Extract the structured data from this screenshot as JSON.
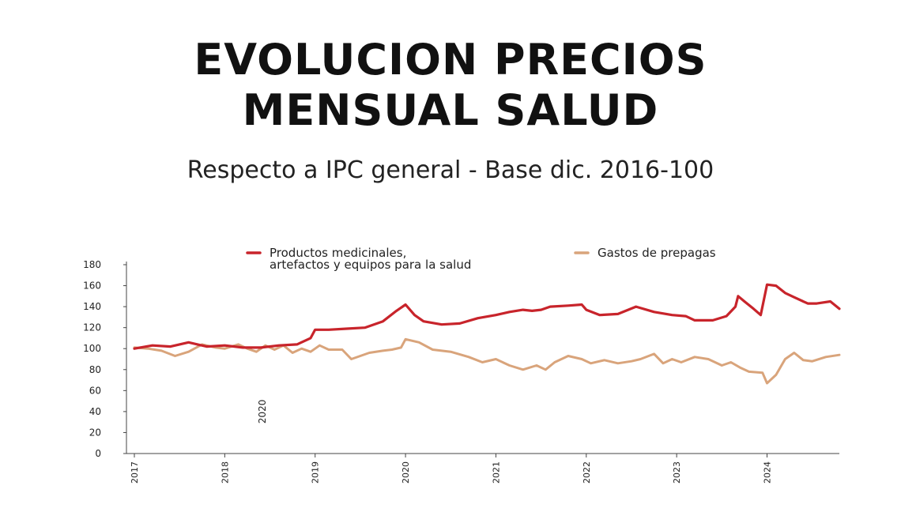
{
  "title_line1": "EVOLUCION PRECIOS",
  "title_line2": "MENSUAL SALUD",
  "subtitle": "Respecto a IPC general - Base dic. 2016-100",
  "chart_data": {
    "type": "line",
    "ylim": [
      0,
      180
    ],
    "yticks": [
      0,
      20,
      40,
      60,
      80,
      100,
      120,
      140,
      160,
      180
    ],
    "xlim": [
      2017,
      2024.8
    ],
    "xticks": [
      2017,
      2018,
      2019,
      2020,
      2021,
      2022,
      2023,
      2024
    ],
    "grid": false,
    "legend_position": "top",
    "annotation": {
      "text": "2020",
      "x": 2018.45,
      "y": 40
    },
    "series": [
      {
        "name": "Productos medicinales, artefactos y equipos para la salud",
        "color": "#c8242b",
        "points": [
          [
            2017.0,
            100
          ],
          [
            2017.2,
            103
          ],
          [
            2017.4,
            102
          ],
          [
            2017.6,
            106
          ],
          [
            2017.8,
            102
          ],
          [
            2018.0,
            103
          ],
          [
            2018.2,
            101
          ],
          [
            2018.4,
            101
          ],
          [
            2018.6,
            103
          ],
          [
            2018.8,
            104
          ],
          [
            2018.95,
            110
          ],
          [
            2019.0,
            118
          ],
          [
            2019.15,
            118
          ],
          [
            2019.35,
            119
          ],
          [
            2019.55,
            120
          ],
          [
            2019.75,
            126
          ],
          [
            2019.9,
            136
          ],
          [
            2020.0,
            142
          ],
          [
            2020.1,
            132
          ],
          [
            2020.2,
            126
          ],
          [
            2020.4,
            123
          ],
          [
            2020.6,
            124
          ],
          [
            2020.8,
            129
          ],
          [
            2021.0,
            132
          ],
          [
            2021.15,
            135
          ],
          [
            2021.3,
            137
          ],
          [
            2021.4,
            136
          ],
          [
            2021.5,
            137
          ],
          [
            2021.6,
            140
          ],
          [
            2021.8,
            141
          ],
          [
            2021.95,
            142
          ],
          [
            2022.0,
            137
          ],
          [
            2022.15,
            132
          ],
          [
            2022.35,
            133
          ],
          [
            2022.55,
            140
          ],
          [
            2022.75,
            135
          ],
          [
            2022.95,
            132
          ],
          [
            2023.1,
            131
          ],
          [
            2023.2,
            127
          ],
          [
            2023.4,
            127
          ],
          [
            2023.55,
            131
          ],
          [
            2023.65,
            140
          ],
          [
            2023.68,
            150
          ],
          [
            2023.75,
            145
          ],
          [
            2023.85,
            138
          ],
          [
            2023.93,
            132
          ],
          [
            2024.0,
            161
          ],
          [
            2024.1,
            160
          ],
          [
            2024.2,
            153
          ],
          [
            2024.3,
            149
          ],
          [
            2024.45,
            143
          ],
          [
            2024.55,
            143
          ],
          [
            2024.7,
            145
          ],
          [
            2024.8,
            138
          ]
        ]
      },
      {
        "name": "Gastos de prepagas",
        "color": "#d9a47b",
        "points": [
          [
            2017.0,
            101
          ],
          [
            2017.15,
            100
          ],
          [
            2017.3,
            98
          ],
          [
            2017.45,
            93
          ],
          [
            2017.6,
            97
          ],
          [
            2017.75,
            104
          ],
          [
            2017.9,
            101
          ],
          [
            2018.0,
            100
          ],
          [
            2018.15,
            104
          ],
          [
            2018.25,
            100
          ],
          [
            2018.35,
            97
          ],
          [
            2018.45,
            103
          ],
          [
            2018.55,
            99
          ],
          [
            2018.65,
            103
          ],
          [
            2018.75,
            96
          ],
          [
            2018.85,
            100
          ],
          [
            2018.95,
            97
          ],
          [
            2019.05,
            103
          ],
          [
            2019.15,
            99
          ],
          [
            2019.3,
            99
          ],
          [
            2019.4,
            90
          ],
          [
            2019.5,
            93
          ],
          [
            2019.6,
            96
          ],
          [
            2019.75,
            98
          ],
          [
            2019.85,
            99
          ],
          [
            2019.95,
            101
          ],
          [
            2020.0,
            109
          ],
          [
            2020.15,
            106
          ],
          [
            2020.3,
            99
          ],
          [
            2020.5,
            97
          ],
          [
            2020.7,
            92
          ],
          [
            2020.85,
            87
          ],
          [
            2021.0,
            90
          ],
          [
            2021.15,
            84
          ],
          [
            2021.3,
            80
          ],
          [
            2021.45,
            84
          ],
          [
            2021.55,
            80
          ],
          [
            2021.65,
            87
          ],
          [
            2021.8,
            93
          ],
          [
            2021.95,
            90
          ],
          [
            2022.05,
            86
          ],
          [
            2022.2,
            89
          ],
          [
            2022.35,
            86
          ],
          [
            2022.5,
            88
          ],
          [
            2022.6,
            90
          ],
          [
            2022.75,
            95
          ],
          [
            2022.85,
            86
          ],
          [
            2022.95,
            90
          ],
          [
            2023.05,
            87
          ],
          [
            2023.2,
            92
          ],
          [
            2023.35,
            90
          ],
          [
            2023.5,
            84
          ],
          [
            2023.6,
            87
          ],
          [
            2023.7,
            82
          ],
          [
            2023.8,
            78
          ],
          [
            2023.95,
            77
          ],
          [
            2024.0,
            67
          ],
          [
            2024.1,
            75
          ],
          [
            2024.2,
            90
          ],
          [
            2024.3,
            96
          ],
          [
            2024.4,
            89
          ],
          [
            2024.5,
            88
          ],
          [
            2024.65,
            92
          ],
          [
            2024.8,
            94
          ]
        ]
      }
    ],
    "legend": [
      {
        "lines": [
          "Productos medicinales,",
          "artefactos y equipos para la salud"
        ],
        "color": "#c8242b"
      },
      {
        "lines": [
          "Gastos de prepagas"
        ],
        "color": "#d9a47b"
      }
    ]
  }
}
